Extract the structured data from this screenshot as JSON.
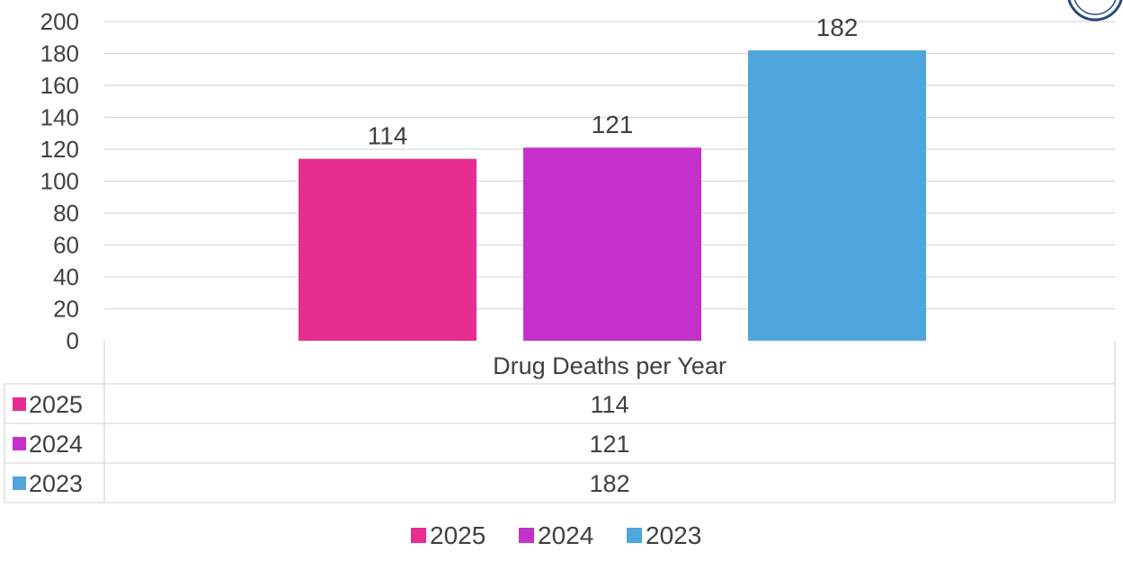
{
  "chart_data": {
    "type": "bar",
    "categories": [
      "Drug Deaths per Year"
    ],
    "series": [
      {
        "name": "2025",
        "values": [
          114
        ],
        "color": "#e52e8f"
      },
      {
        "name": "2024",
        "values": [
          121
        ],
        "color": "#c631cc"
      },
      {
        "name": "2023",
        "values": [
          182
        ],
        "color": "#4fa6dc"
      }
    ],
    "ylim": [
      0,
      200
    ],
    "yticks": [
      0,
      20,
      40,
      60,
      80,
      100,
      120,
      140,
      160,
      180,
      200
    ],
    "grid": true,
    "data_table": true,
    "legend_position": "bottom"
  }
}
